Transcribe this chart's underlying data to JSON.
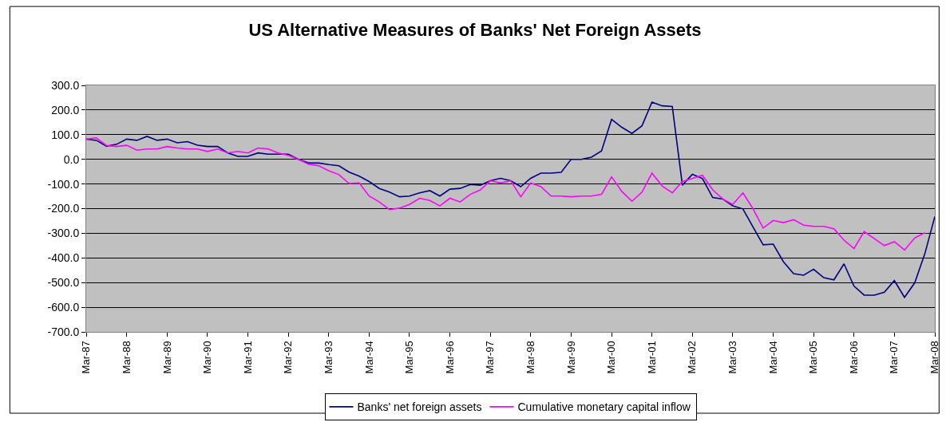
{
  "chart_data": {
    "type": "line",
    "title": "US Alternative Measures of Banks' Net Foreign Assets",
    "x": [
      "1987-03",
      "1987-06",
      "1987-09",
      "1987-12",
      "1988-03",
      "1988-06",
      "1988-09",
      "1988-12",
      "1989-03",
      "1989-06",
      "1989-09",
      "1989-12",
      "1990-03",
      "1990-06",
      "1990-09",
      "1990-12",
      "1991-03",
      "1991-06",
      "1991-09",
      "1991-12",
      "1992-03",
      "1992-06",
      "1992-09",
      "1992-12",
      "1993-03",
      "1993-06",
      "1993-09",
      "1993-12",
      "1994-03",
      "1994-06",
      "1994-09",
      "1994-12",
      "1995-03",
      "1995-06",
      "1995-09",
      "1995-12",
      "1996-03",
      "1996-06",
      "1996-09",
      "1996-12",
      "1997-03",
      "1997-06",
      "1997-09",
      "1997-12",
      "1998-03",
      "1998-06",
      "1998-09",
      "1998-12",
      "1999-03",
      "1999-06",
      "1999-09",
      "1999-12",
      "2000-03",
      "2000-06",
      "2000-09",
      "2000-12",
      "2001-03",
      "2001-06",
      "2001-09",
      "2001-12",
      "2002-03",
      "2002-06",
      "2002-09",
      "2002-12",
      "2003-03",
      "2003-06",
      "2003-09",
      "2003-12",
      "2004-03",
      "2004-06",
      "2004-09",
      "2004-12",
      "2005-03",
      "2005-06",
      "2005-09",
      "2005-12",
      "2006-03",
      "2006-06",
      "2006-09",
      "2006-12",
      "2007-03",
      "2007-06",
      "2007-09",
      "2007-12",
      "2008-03"
    ],
    "series": [
      {
        "name": "Banks' net foreign assets",
        "color": "#000080",
        "values": [
          82,
          77,
          53,
          61,
          82,
          77,
          93,
          77,
          82,
          67,
          72,
          57,
          52,
          52,
          26,
          12,
          12,
          26,
          21,
          21,
          21,
          0,
          -15,
          -15,
          -21,
          -26,
          -52,
          -68,
          -90,
          -118,
          -133,
          -152,
          -149,
          -136,
          -127,
          -149,
          -121,
          -118,
          -102,
          -105,
          -87,
          -77,
          -87,
          -111,
          -77,
          -56,
          -56,
          -53,
          0,
          0,
          9,
          34,
          162,
          130,
          105,
          136,
          232,
          217,
          214,
          -105,
          -61,
          -78,
          -155,
          -161,
          -189,
          -201,
          -275,
          -347,
          -344,
          -415,
          -464,
          -470,
          -446,
          -480,
          -489,
          -424,
          -514,
          -551,
          -551,
          -539,
          -492,
          -560,
          -501,
          -384,
          -232
        ]
      },
      {
        "name": "Cumulative monetary capital inflow",
        "color": "#ff00ff",
        "values": [
          82,
          87,
          56,
          52,
          57,
          37,
          42,
          42,
          52,
          46,
          42,
          42,
          32,
          42,
          26,
          32,
          26,
          46,
          42,
          26,
          16,
          0,
          -20,
          -26,
          -46,
          -62,
          -98,
          -96,
          -149,
          -173,
          -204,
          -198,
          -183,
          -158,
          -167,
          -189,
          -158,
          -173,
          -142,
          -124,
          -87,
          -96,
          -87,
          -152,
          -96,
          -111,
          -149,
          -149,
          -152,
          -149,
          -149,
          -142,
          -71,
          -130,
          -170,
          -133,
          -56,
          -108,
          -136,
          -90,
          -78,
          -65,
          -124,
          -161,
          -183,
          -136,
          -201,
          -279,
          -248,
          -257,
          -245,
          -267,
          -272,
          -272,
          -282,
          -328,
          -362,
          -293,
          -322,
          -350,
          -334,
          -368,
          -319,
          -298,
          null
        ]
      }
    ],
    "xlim": [
      "1987-03",
      "2008-03"
    ],
    "xticks": [
      {
        "value": "1987-03",
        "label": "Mar-87"
      },
      {
        "value": "1988-03",
        "label": "Mar-88"
      },
      {
        "value": "1989-03",
        "label": "Mar-89"
      },
      {
        "value": "1990-03",
        "label": "Mar-90"
      },
      {
        "value": "1991-03",
        "label": "Mar-91"
      },
      {
        "value": "1992-03",
        "label": "Mar-92"
      },
      {
        "value": "1993-03",
        "label": "Mar-93"
      },
      {
        "value": "1994-03",
        "label": "Mar-94"
      },
      {
        "value": "1995-03",
        "label": "Mar-95"
      },
      {
        "value": "1996-03",
        "label": "Mar-96"
      },
      {
        "value": "1997-03",
        "label": "Mar-97"
      },
      {
        "value": "1998-03",
        "label": "Mar-98"
      },
      {
        "value": "1999-03",
        "label": "Mar-99"
      },
      {
        "value": "2000-03",
        "label": "Mar-00"
      },
      {
        "value": "2001-03",
        "label": "Mar-01"
      },
      {
        "value": "2002-03",
        "label": "Mar-02"
      },
      {
        "value": "2003-03",
        "label": "Mar-03"
      },
      {
        "value": "2004-03",
        "label": "Mar-04"
      },
      {
        "value": "2005-03",
        "label": "Mar-05"
      },
      {
        "value": "2006-03",
        "label": "Mar-06"
      },
      {
        "value": "2007-03",
        "label": "Mar-07"
      },
      {
        "value": "2008-03",
        "label": "Mar-08"
      }
    ],
    "ylim": [
      -700,
      300
    ],
    "yticks": [
      {
        "value": 300,
        "label": "300.0"
      },
      {
        "value": 200,
        "label": "200.0"
      },
      {
        "value": 100,
        "label": "100.0"
      },
      {
        "value": 0,
        "label": "0.0"
      },
      {
        "value": -100,
        "label": "-100.0"
      },
      {
        "value": -200,
        "label": "-200.0"
      },
      {
        "value": -300,
        "label": "-300.0"
      },
      {
        "value": -400,
        "label": "-400.0"
      },
      {
        "value": -500,
        "label": "-500.0"
      },
      {
        "value": -600,
        "label": "-600.0"
      },
      {
        "value": -700,
        "label": "-700.0"
      }
    ],
    "grid": "y",
    "legend": "bottom",
    "marker": "none",
    "line_style": "solid"
  }
}
